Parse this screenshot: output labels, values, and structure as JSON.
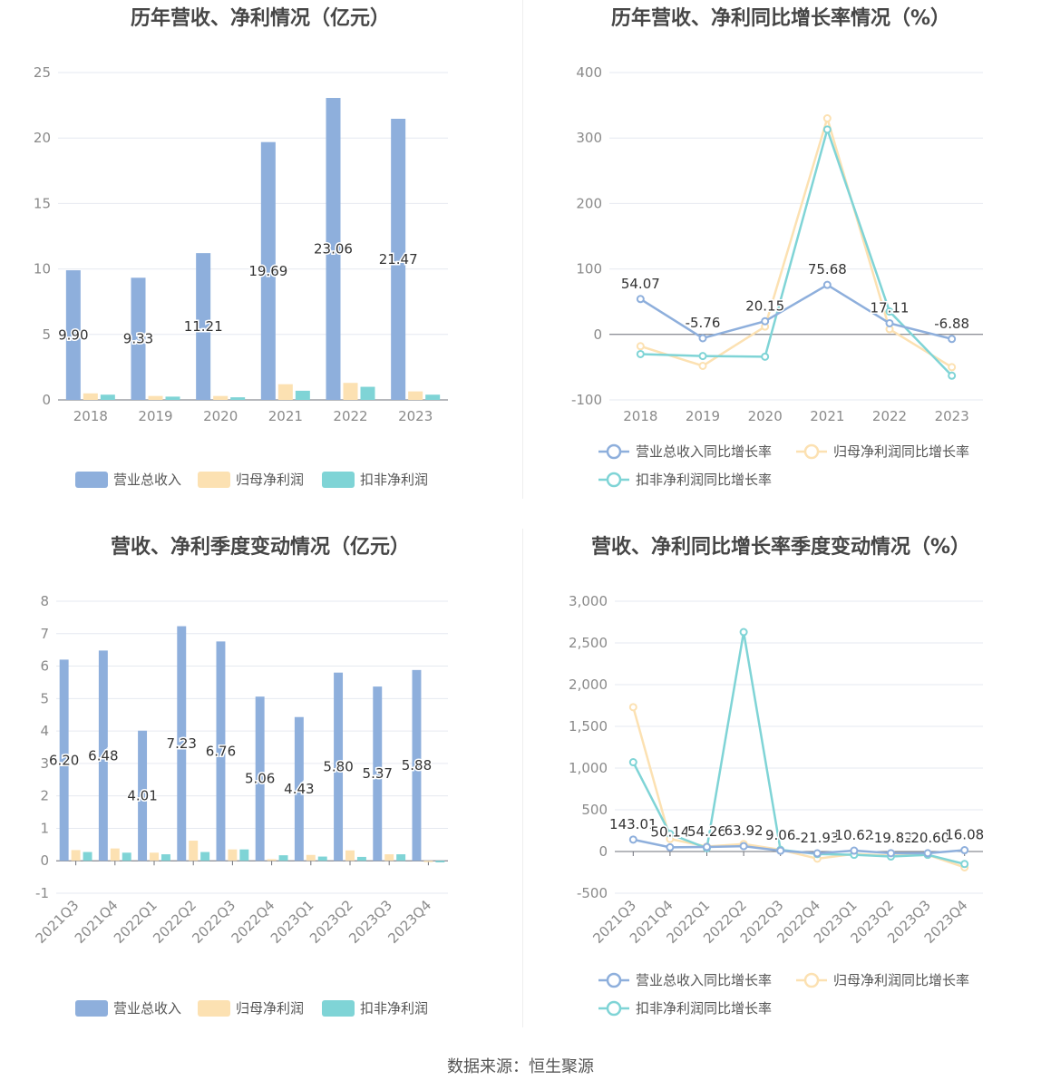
{
  "footer": "数据来源：恒生聚源",
  "colors": {
    "revenue": "#8eafdc",
    "net_profit": "#fce1b2",
    "deducted": "#7fd4d6"
  },
  "chart_data": [
    {
      "type": "bar",
      "title": "历年营收、净利情况（亿元）",
      "categories": [
        "2018",
        "2019",
        "2020",
        "2021",
        "2022",
        "2023"
      ],
      "ylim": [
        0,
        25
      ],
      "yticks": [
        0,
        5,
        10,
        15,
        20,
        25
      ],
      "series": [
        {
          "name": "营业总收入",
          "values": [
            9.9,
            9.33,
            11.21,
            19.69,
            23.06,
            21.47
          ],
          "labels": [
            "9.90",
            "9.33",
            "11.21",
            "19.69",
            "23.06",
            "21.47"
          ]
        },
        {
          "name": "归母净利润",
          "values": [
            0.5,
            0.3,
            0.3,
            1.2,
            1.3,
            0.65
          ]
        },
        {
          "name": "扣非净利润",
          "values": [
            0.4,
            0.25,
            0.2,
            0.7,
            1.0,
            0.4
          ]
        }
      ],
      "legend_position": "bottom"
    },
    {
      "type": "line",
      "title": "历年营收、净利同比增长率情况（%）",
      "categories": [
        "2018",
        "2019",
        "2020",
        "2021",
        "2022",
        "2023"
      ],
      "ylim": [
        -100,
        400
      ],
      "yticks": [
        -100,
        0,
        100,
        200,
        300,
        400
      ],
      "series": [
        {
          "name": "营业总收入同比增长率",
          "values": [
            54.07,
            -5.76,
            20.15,
            75.68,
            17.11,
            -6.88
          ],
          "labels": [
            "54.07",
            "-5.76",
            "20.15",
            "75.68",
            "17.11",
            "-6.88"
          ]
        },
        {
          "name": "归母净利润同比增长率",
          "values": [
            -18,
            -48,
            12,
            330,
            8,
            -50
          ]
        },
        {
          "name": "扣非净利润同比增长率",
          "values": [
            -30,
            -33,
            -34,
            313,
            35,
            -63
          ]
        }
      ],
      "legend_position": "bottom"
    },
    {
      "type": "bar",
      "title": "营收、净利季度变动情况（亿元）",
      "categories": [
        "2021Q3",
        "2021Q4",
        "2022Q1",
        "2022Q2",
        "2022Q3",
        "2022Q4",
        "2023Q1",
        "2023Q2",
        "2023Q3",
        "2023Q4"
      ],
      "ylim": [
        -1,
        8
      ],
      "yticks": [
        -1,
        0,
        1,
        2,
        3,
        4,
        5,
        6,
        7,
        8
      ],
      "series": [
        {
          "name": "营业总收入",
          "values": [
            6.2,
            6.48,
            4.01,
            7.23,
            6.76,
            5.06,
            4.43,
            5.8,
            5.37,
            5.88
          ],
          "labels": [
            "6.20",
            "6.48",
            "4.01",
            "7.23",
            "6.76",
            "5.06",
            "4.43",
            "5.80",
            "5.37",
            "5.88"
          ]
        },
        {
          "name": "归母净利润",
          "values": [
            0.33,
            0.38,
            0.25,
            0.62,
            0.35,
            0.05,
            0.18,
            0.32,
            0.2,
            -0.04
          ]
        },
        {
          "name": "扣非净利润",
          "values": [
            0.27,
            0.25,
            0.2,
            0.27,
            0.35,
            0.17,
            0.13,
            0.12,
            0.2,
            -0.05
          ]
        }
      ],
      "legend_position": "bottom"
    },
    {
      "type": "line",
      "title": "营收、净利同比增长率季度变动情况（%）",
      "categories": [
        "2021Q3",
        "2021Q4",
        "2022Q1",
        "2022Q2",
        "2022Q3",
        "2022Q4",
        "2023Q1",
        "2023Q2",
        "2023Q3",
        "2023Q4"
      ],
      "ylim": [
        -500,
        3000
      ],
      "yticks": [
        -500,
        0,
        500,
        1000,
        1500,
        2000,
        2500,
        3000
      ],
      "series": [
        {
          "name": "营业总收入同比增长率",
          "values": [
            143.01,
            50.14,
            54.26,
            63.92,
            9.06,
            -21.93,
            10.62,
            -19.82,
            -20.6,
            16.08
          ],
          "labels": [
            "143.01",
            "50.14",
            "54.26",
            "63.92",
            "9.06",
            "-21.93",
            "10.62",
            "-19.82",
            "-20.60",
            "16.08"
          ]
        },
        {
          "name": "归母净利润同比增长率",
          "values": [
            1730,
            150,
            60,
            90,
            20,
            -85,
            -30,
            -50,
            -40,
            -190
          ]
        },
        {
          "name": "扣非净利润同比增长率",
          "values": [
            1070,
            210,
            40,
            2630,
            20,
            -30,
            -40,
            -60,
            -40,
            -150
          ]
        }
      ],
      "legend_position": "bottom"
    }
  ]
}
